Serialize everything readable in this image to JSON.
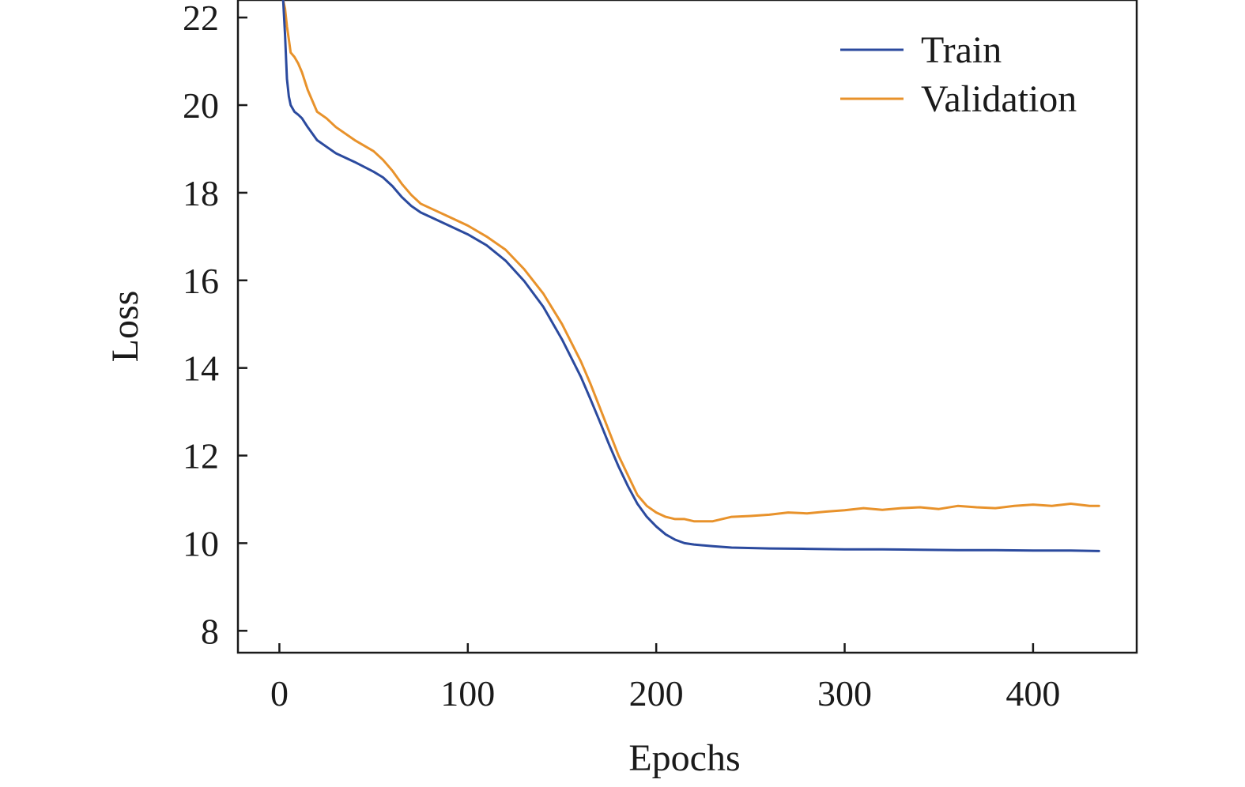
{
  "chart_data": {
    "type": "line",
    "title": "",
    "xlabel": "Epochs",
    "ylabel": "Loss",
    "xlim": [
      -22,
      455
    ],
    "ylim": [
      7.5,
      22.4
    ],
    "xticks": [
      0,
      100,
      200,
      300,
      400
    ],
    "yticks": [
      8,
      10,
      12,
      14,
      16,
      18,
      20,
      22
    ],
    "grid": false,
    "legend_position": "top-right",
    "series": [
      {
        "name": "Train",
        "color": "#2b4a9e",
        "x": [
          2,
          3,
          4,
          5,
          6,
          8,
          10,
          12,
          15,
          20,
          25,
          30,
          40,
          50,
          55,
          60,
          65,
          70,
          75,
          80,
          90,
          100,
          110,
          120,
          130,
          140,
          150,
          160,
          165,
          170,
          175,
          180,
          185,
          190,
          195,
          200,
          205,
          210,
          215,
          220,
          230,
          240,
          260,
          280,
          300,
          320,
          340,
          360,
          380,
          400,
          420,
          435
        ],
        "values": [
          22.4,
          21.6,
          20.6,
          20.2,
          20.0,
          19.85,
          19.78,
          19.7,
          19.5,
          19.2,
          19.05,
          18.9,
          18.7,
          18.48,
          18.35,
          18.15,
          17.9,
          17.7,
          17.55,
          17.45,
          17.25,
          17.05,
          16.8,
          16.45,
          15.98,
          15.4,
          14.65,
          13.8,
          13.3,
          12.78,
          12.25,
          11.75,
          11.3,
          10.9,
          10.6,
          10.38,
          10.2,
          10.08,
          10.0,
          9.97,
          9.93,
          9.9,
          9.88,
          9.87,
          9.86,
          9.86,
          9.85,
          9.84,
          9.84,
          9.83,
          9.83,
          9.82
        ]
      },
      {
        "name": "Validation",
        "color": "#e8922b",
        "x": [
          2,
          3,
          4,
          5,
          6,
          8,
          10,
          12,
          15,
          20,
          25,
          30,
          40,
          50,
          55,
          60,
          65,
          70,
          75,
          80,
          90,
          100,
          110,
          120,
          130,
          140,
          150,
          160,
          165,
          170,
          175,
          180,
          185,
          190,
          195,
          200,
          205,
          210,
          215,
          220,
          230,
          240,
          250,
          260,
          270,
          280,
          290,
          300,
          310,
          320,
          330,
          340,
          350,
          360,
          370,
          380,
          390,
          400,
          410,
          420,
          430,
          435
        ],
        "values": [
          22.4,
          22.2,
          21.8,
          21.5,
          21.2,
          21.1,
          20.95,
          20.75,
          20.35,
          19.85,
          19.7,
          19.5,
          19.2,
          18.95,
          18.75,
          18.5,
          18.2,
          17.95,
          17.75,
          17.65,
          17.45,
          17.25,
          17.0,
          16.7,
          16.25,
          15.7,
          15.0,
          14.15,
          13.65,
          13.1,
          12.55,
          12.0,
          11.55,
          11.1,
          10.85,
          10.7,
          10.6,
          10.55,
          10.55,
          10.5,
          10.5,
          10.6,
          10.62,
          10.65,
          10.7,
          10.68,
          10.72,
          10.75,
          10.8,
          10.76,
          10.8,
          10.82,
          10.78,
          10.85,
          10.82,
          10.8,
          10.85,
          10.88,
          10.85,
          10.9,
          10.85,
          10.85
        ]
      }
    ]
  }
}
